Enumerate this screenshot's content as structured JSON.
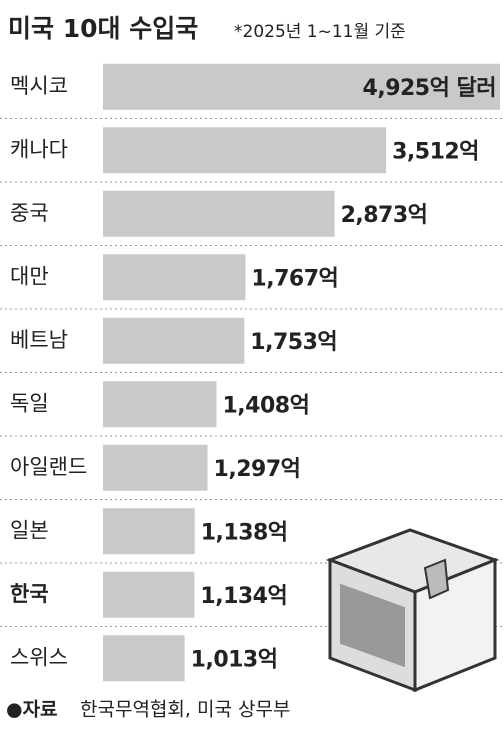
{
  "chart_data": {
    "type": "hbar",
    "title": "미국 10대 수입국",
    "subtitle": "*2025년 1~11월 기준",
    "categories": [
      "멕시코",
      "캐나다",
      "중국",
      "대만",
      "베트남",
      "독일",
      "아일랜드",
      "일본",
      "한국",
      "스위스"
    ],
    "values": [
      4925,
      3512,
      2873,
      1767,
      1753,
      1408,
      1297,
      1138,
      1134,
      1013
    ],
    "value_labels": [
      "4,925억 달러",
      "3,512억",
      "2,873억",
      "1,767억",
      "1,753억",
      "1,408억",
      "1,297억",
      "1,138억",
      "1,134억",
      "1,013억"
    ],
    "color": "#c9c9c9",
    "highlight_index": 8,
    "source_label": "●자료",
    "source": "한국무역협회, 미국 상무부"
  }
}
